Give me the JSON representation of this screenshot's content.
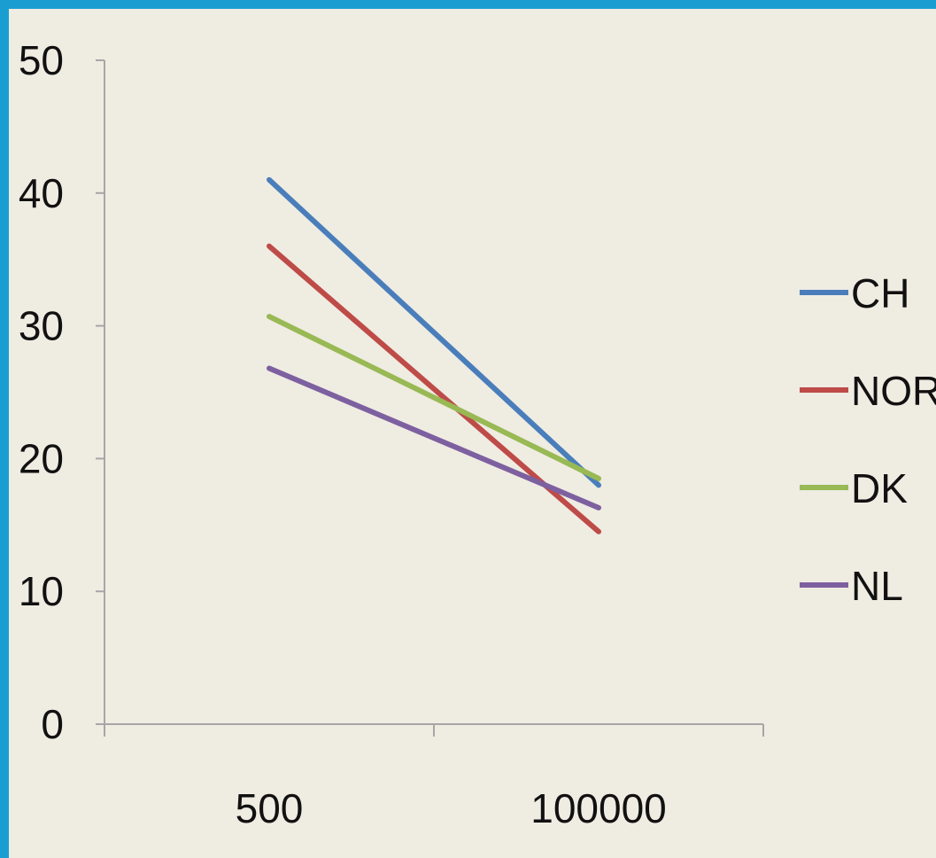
{
  "chart_data": {
    "type": "line",
    "categories": [
      "500",
      "100000"
    ],
    "series": [
      {
        "name": "CH",
        "values": [
          41,
          18
        ],
        "color": "#4a7ebb"
      },
      {
        "name": "NOR",
        "values": [
          36,
          14.5
        ],
        "color": "#be4b48"
      },
      {
        "name": "DK",
        "values": [
          30.7,
          18.5
        ],
        "color": "#98b954"
      },
      {
        "name": "NL",
        "values": [
          26.8,
          16.3
        ],
        "color": "#7d60a0"
      }
    ],
    "y_ticks": [
      "0",
      "10",
      "20",
      "30",
      "40",
      "50"
    ],
    "ylim": [
      0,
      50
    ],
    "grid": false,
    "legend_position": "right",
    "axis_color": "#a6a6a6",
    "background_color": "#efece2",
    "frame_color": "#1a9ed1"
  }
}
